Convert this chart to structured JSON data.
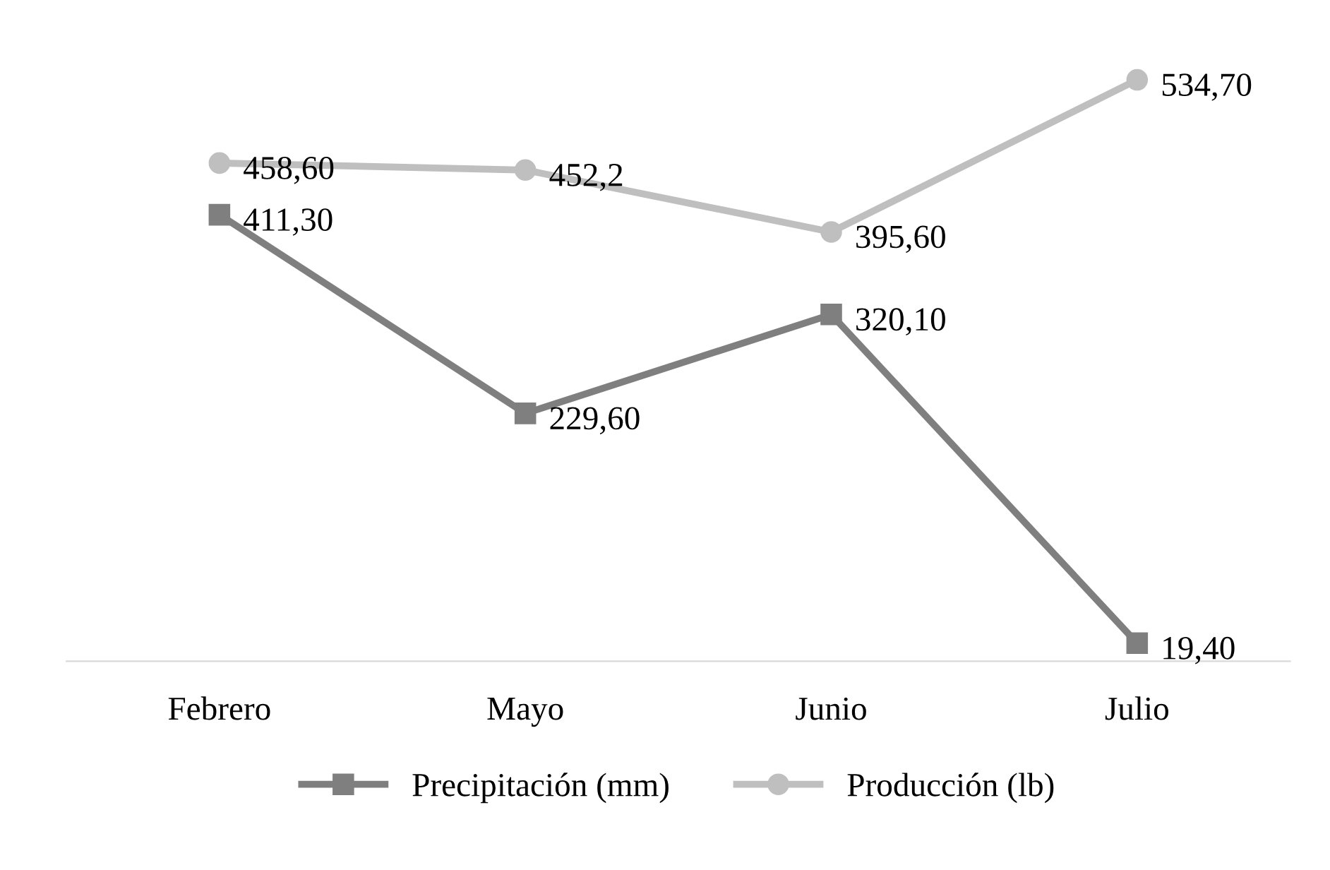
{
  "chart_data": {
    "type": "line",
    "categories": [
      "Febrero",
      "Mayo",
      "Junio",
      "Julio"
    ],
    "series": [
      {
        "name": "Precipitación (mm)",
        "color": "#7f7f7f",
        "marker": "square",
        "values": [
          411.3,
          229.6,
          320.1,
          19.4
        ],
        "value_labels": [
          "411,30",
          "229,60",
          "320,10",
          "19,40"
        ]
      },
      {
        "name": "Producción (lb)",
        "color": "#bfbfbf",
        "marker": "circle",
        "values": [
          458.6,
          452.2,
          395.6,
          534.7
        ],
        "value_labels": [
          "458,60",
          "452,2",
          "395,60",
          "534,70"
        ]
      }
    ],
    "legend": "bottom",
    "grid": false
  }
}
